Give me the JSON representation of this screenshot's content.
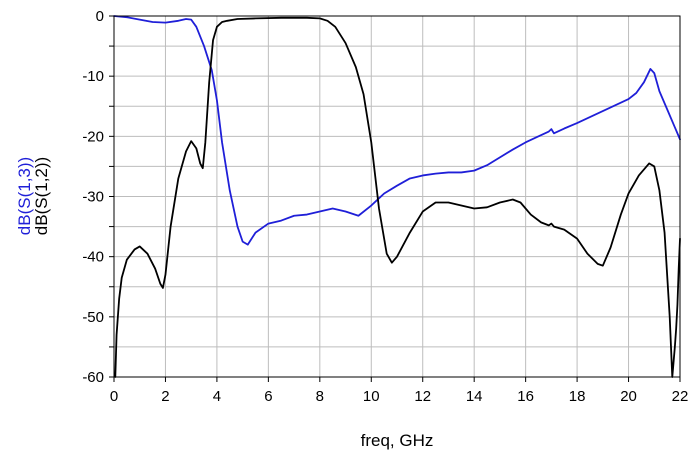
{
  "chart_data": {
    "type": "line",
    "xlabel": "freq, GHz",
    "xlim": [
      0,
      22
    ],
    "ylim": [
      -60,
      0
    ],
    "grid": true,
    "x_ticks": [
      "0",
      "2",
      "4",
      "6",
      "8",
      "10",
      "12",
      "14",
      "16",
      "18",
      "20",
      "22"
    ],
    "y_ticks": [
      "0",
      "-10",
      "-20",
      "-30",
      "-40",
      "-50",
      "-60"
    ],
    "series": [
      {
        "name": "dB(S(1,3))",
        "color": "#1f1fd8",
        "x": [
          0,
          0.5,
          1,
          1.5,
          2,
          2.5,
          2.8,
          3.0,
          3.2,
          3.5,
          3.8,
          4.0,
          4.2,
          4.5,
          4.8,
          5.0,
          5.2,
          5.5,
          6.0,
          6.5,
          7.0,
          7.5,
          8.0,
          8.5,
          9.0,
          9.5,
          10.0,
          10.5,
          11.0,
          11.5,
          12.0,
          12.5,
          13.0,
          13.5,
          14.0,
          14.5,
          15.0,
          15.5,
          16.0,
          16.5,
          16.9,
          17.0,
          17.1,
          17.5,
          18.0,
          18.5,
          19.0,
          19.5,
          20.0,
          20.3,
          20.6,
          20.85,
          21.0,
          21.2,
          21.5,
          21.8,
          22.0
        ],
        "values": [
          0,
          -0.2,
          -0.6,
          -1.0,
          -1.1,
          -0.8,
          -0.5,
          -0.6,
          -1.8,
          -5.0,
          -9.0,
          -14.0,
          -21.0,
          -29.0,
          -35.0,
          -37.5,
          -38.0,
          -36.0,
          -34.5,
          -34.0,
          -33.2,
          -33.0,
          -32.5,
          -32.0,
          -32.5,
          -33.2,
          -31.5,
          -29.5,
          -28.2,
          -27.0,
          -26.5,
          -26.2,
          -26.0,
          -26.0,
          -25.7,
          -24.8,
          -23.5,
          -22.2,
          -21.0,
          -20.0,
          -19.2,
          -18.8,
          -19.5,
          -18.7,
          -17.8,
          -16.8,
          -15.8,
          -14.8,
          -13.8,
          -12.8,
          -11.0,
          -8.8,
          -9.5,
          -12.5,
          -15.5,
          -18.5,
          -20.5
        ]
      },
      {
        "name": "dB(S(1,2))",
        "color": "#000000",
        "x": [
          0.05,
          0.1,
          0.2,
          0.3,
          0.5,
          0.8,
          1.0,
          1.3,
          1.6,
          1.8,
          1.9,
          2.0,
          2.2,
          2.5,
          2.8,
          3.0,
          3.2,
          3.35,
          3.45,
          3.55,
          3.7,
          3.85,
          4.0,
          4.2,
          4.4,
          4.8,
          5.5,
          6.5,
          7.5,
          8.0,
          8.3,
          8.6,
          9.0,
          9.4,
          9.7,
          10.0,
          10.3,
          10.6,
          10.8,
          11.0,
          11.5,
          12.0,
          12.5,
          13.0,
          13.5,
          14.0,
          14.5,
          15.0,
          15.5,
          15.8,
          16.2,
          16.6,
          16.9,
          17.0,
          17.1,
          17.5,
          18.0,
          18.4,
          18.8,
          19.0,
          19.3,
          19.7,
          20.0,
          20.4,
          20.8,
          21.0,
          21.2,
          21.4,
          21.6,
          21.7,
          21.8,
          21.85,
          21.9,
          21.95,
          22.0
        ],
        "values": [
          -60,
          -53,
          -47,
          -43.5,
          -40.5,
          -38.8,
          -38.3,
          -39.5,
          -42.0,
          -44.5,
          -45.2,
          -43.0,
          -35.0,
          -27.0,
          -22.5,
          -20.8,
          -22.0,
          -24.5,
          -25.3,
          -21.0,
          -11.0,
          -4.0,
          -1.8,
          -1.0,
          -0.8,
          -0.5,
          -0.4,
          -0.3,
          -0.3,
          -0.4,
          -0.8,
          -1.8,
          -4.5,
          -8.5,
          -13.0,
          -21.0,
          -32.0,
          -39.5,
          -41.0,
          -40.0,
          -36.0,
          -32.5,
          -31.0,
          -31.0,
          -31.5,
          -32.0,
          -31.8,
          -31.0,
          -30.5,
          -31.0,
          -33.0,
          -34.3,
          -34.8,
          -34.5,
          -35.0,
          -35.5,
          -37.0,
          -39.5,
          -41.2,
          -41.5,
          -38.5,
          -33.0,
          -29.5,
          -26.5,
          -24.5,
          -25.0,
          -29.0,
          -36.0,
          -50.0,
          -60,
          -55.0,
          -52.0,
          -48.0,
          -42.0,
          -37.0
        ]
      }
    ]
  }
}
